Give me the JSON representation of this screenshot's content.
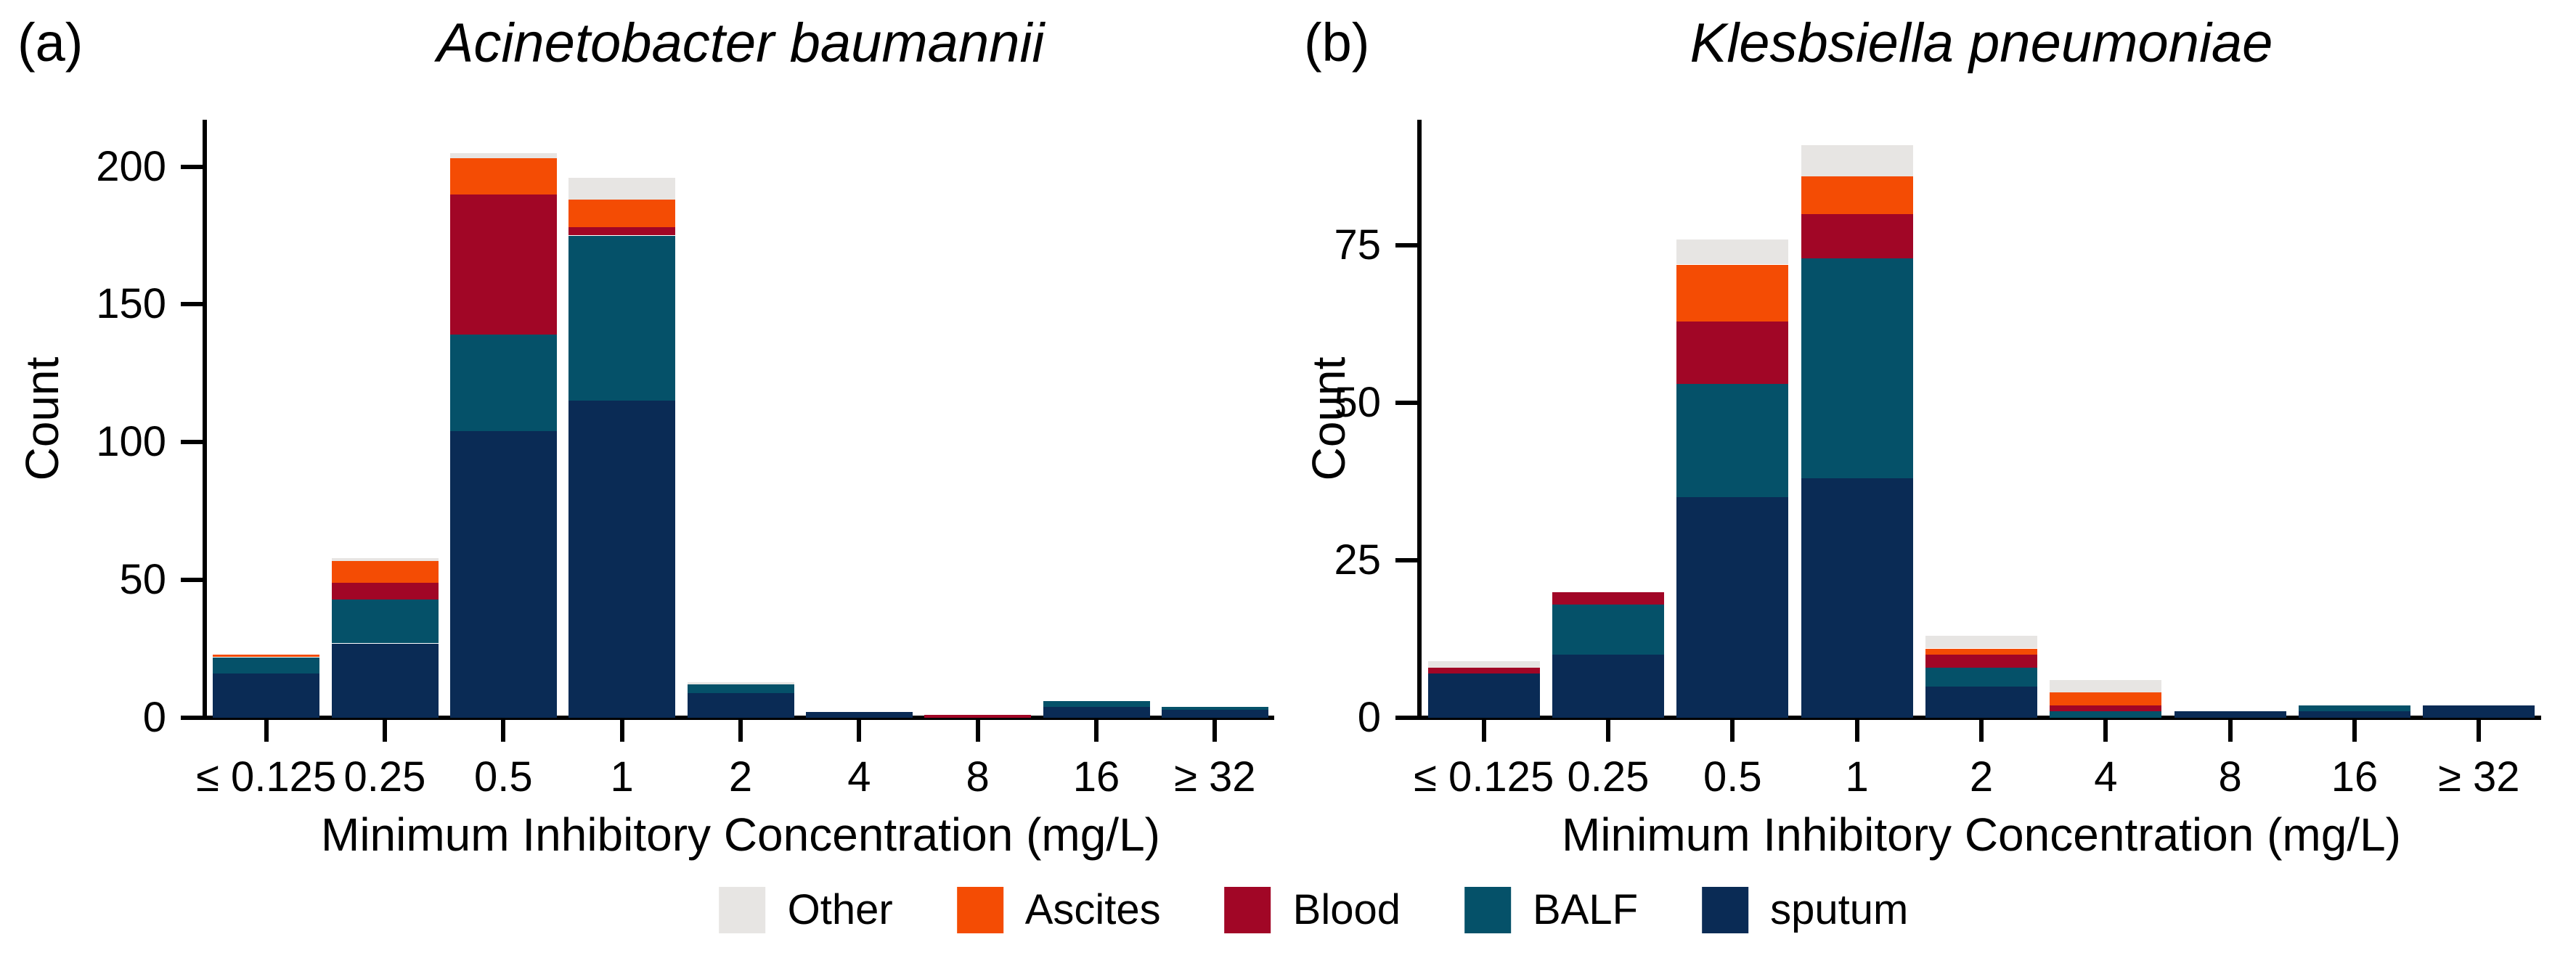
{
  "figure": {
    "ylabel": "Count",
    "xlabel": "Minimum Inhibitory Concentration (mg/L)"
  },
  "legend": {
    "items": [
      {
        "label": "Other",
        "color": "#e7e5e3"
      },
      {
        "label": "Ascites",
        "color": "#f44c04"
      },
      {
        "label": "Blood",
        "color": "#a10626"
      },
      {
        "label": "BALF",
        "color": "#055169"
      },
      {
        "label": "sputum",
        "color": "#0a2b55"
      }
    ]
  },
  "chart_data": [
    {
      "type": "bar",
      "stacked": true,
      "panel_letter": "(a)",
      "title": "Acinetobacter baumannii",
      "xlabel": "Minimum Inhibitory Concentration (mg/L)",
      "ylabel": "Count",
      "categories": [
        "≤ 0.125",
        "0.25",
        "0.5",
        "1",
        "2",
        "4",
        "8",
        "16",
        "≥ 32"
      ],
      "yticks": [
        0,
        50,
        100,
        150,
        200
      ],
      "ylim": [
        0,
        217
      ],
      "grid": false,
      "legend_position": "bottom-shared",
      "series": [
        {
          "name": "sputum",
          "color": "#0a2b55",
          "values": [
            16,
            27,
            104,
            115,
            9,
            2,
            0,
            4,
            3
          ]
        },
        {
          "name": "BALF",
          "color": "#055169",
          "values": [
            6,
            16,
            35,
            60,
            3,
            0,
            0,
            2,
            1
          ]
        },
        {
          "name": "Blood",
          "color": "#a10626",
          "values": [
            0,
            6,
            51,
            3,
            0,
            0,
            1,
            0,
            0
          ]
        },
        {
          "name": "Ascites",
          "color": "#f44c04",
          "values": [
            1,
            8,
            13,
            10,
            0,
            0,
            0,
            0,
            0
          ]
        },
        {
          "name": "Other",
          "color": "#e7e5e3",
          "values": [
            0,
            1,
            2,
            8,
            1,
            0,
            0,
            0,
            0
          ]
        }
      ],
      "totals": [
        23,
        58,
        205,
        196,
        13,
        2,
        1,
        6,
        4
      ]
    },
    {
      "type": "bar",
      "stacked": true,
      "panel_letter": "(b)",
      "title": "Klesbsiella pneumoniae",
      "xlabel": "Minimum Inhibitory Concentration (mg/L)",
      "ylabel": "Count",
      "categories": [
        "≤ 0.125",
        "0.25",
        "0.5",
        "1",
        "2",
        "4",
        "8",
        "16",
        "≥ 32"
      ],
      "yticks": [
        0,
        25,
        50,
        75
      ],
      "ylim": [
        0,
        95
      ],
      "grid": false,
      "legend_position": "bottom-shared",
      "series": [
        {
          "name": "sputum",
          "color": "#0a2b55",
          "values": [
            7,
            10,
            35,
            38,
            5,
            0,
            1,
            1,
            2
          ]
        },
        {
          "name": "BALF",
          "color": "#055169",
          "values": [
            0,
            8,
            18,
            35,
            3,
            1,
            0,
            1,
            0
          ]
        },
        {
          "name": "Blood",
          "color": "#a10626",
          "values": [
            1,
            2,
            10,
            7,
            2,
            1,
            0,
            0,
            0
          ]
        },
        {
          "name": "Ascites",
          "color": "#f44c04",
          "values": [
            0,
            0,
            9,
            6,
            1,
            2,
            0,
            0,
            0
          ]
        },
        {
          "name": "Other",
          "color": "#e7e5e3",
          "values": [
            1,
            0,
            4,
            5,
            2,
            2,
            0,
            0,
            0
          ]
        }
      ],
      "totals": [
        9,
        20,
        76,
        91,
        13,
        6,
        1,
        2,
        2
      ]
    }
  ]
}
